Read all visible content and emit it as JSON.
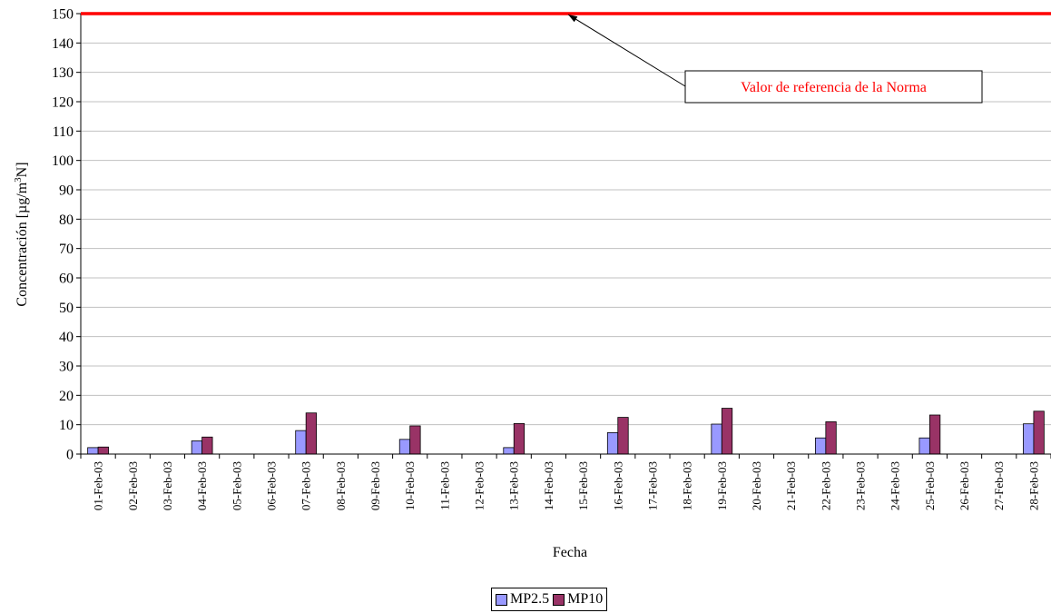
{
  "chart_data": {
    "type": "bar",
    "title": "",
    "xlabel": "Fecha",
    "ylabel_main": "Concentración [µg/m",
    "ylabel_sup": "3",
    "ylabel_tail": "N]",
    "ylim": [
      0,
      150
    ],
    "yticks": [
      0,
      10,
      20,
      30,
      40,
      50,
      60,
      70,
      80,
      90,
      100,
      110,
      120,
      130,
      140,
      150
    ],
    "grid": true,
    "legend_position": "bottom",
    "categories": [
      "01-Feb-03",
      "02-Feb-03",
      "03-Feb-03",
      "04-Feb-03",
      "05-Feb-03",
      "06-Feb-03",
      "07-Feb-03",
      "08-Feb-03",
      "09-Feb-03",
      "10-Feb-03",
      "11-Feb-03",
      "12-Feb-03",
      "13-Feb-03",
      "14-Feb-03",
      "15-Feb-03",
      "16-Feb-03",
      "17-Feb-03",
      "18-Feb-03",
      "19-Feb-03",
      "20-Feb-03",
      "21-Feb-03",
      "22-Feb-03",
      "23-Feb-03",
      "24-Feb-03",
      "25-Feb-03",
      "26-Feb-03",
      "27-Feb-03",
      "28-Feb-03"
    ],
    "series": [
      {
        "name": "MP2.5",
        "color": "#9999ff",
        "values": [
          2.2,
          null,
          null,
          4.5,
          null,
          null,
          8.0,
          null,
          null,
          5.0,
          null,
          null,
          2.2,
          null,
          null,
          7.3,
          null,
          null,
          10.2,
          null,
          null,
          5.5,
          null,
          null,
          5.5,
          null,
          null,
          10.3
        ]
      },
      {
        "name": "MP10",
        "color": "#993366",
        "values": [
          2.4,
          null,
          null,
          5.8,
          null,
          null,
          14.0,
          null,
          null,
          9.6,
          null,
          null,
          10.4,
          null,
          null,
          12.5,
          null,
          null,
          15.6,
          null,
          null,
          11.0,
          null,
          null,
          13.3,
          null,
          null,
          14.6
        ]
      }
    ],
    "reference_line": {
      "value": 150,
      "color": "#ff0000"
    },
    "annotation": {
      "text": "Valor de referencia de la Norma",
      "color": "#ff0000",
      "points_to": 150
    }
  }
}
